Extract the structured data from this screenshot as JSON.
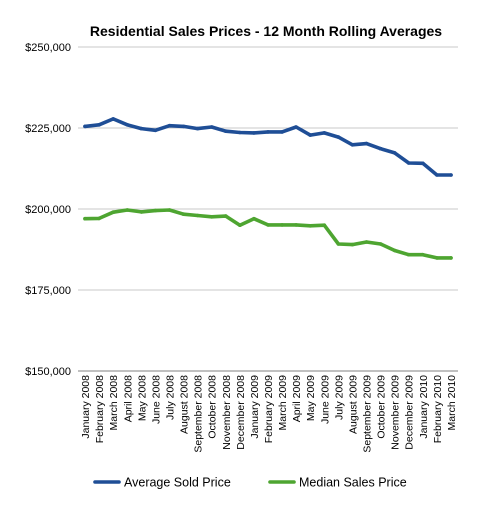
{
  "chart_data": {
    "type": "line",
    "title": "Residential Sales Prices - 12 Month Rolling Averages",
    "xlabel": "",
    "ylabel": "",
    "ylim": [
      150000,
      250000
    ],
    "y_ticks": [
      "$150,000",
      "$175,000",
      "$200,000",
      "$225,000",
      "$250,000"
    ],
    "y_tick_values": [
      150000,
      175000,
      200000,
      225000,
      250000
    ],
    "grid": true,
    "legend_position": "bottom",
    "categories": [
      "January 2008",
      "February 2008",
      "March 2008",
      "April 2008",
      "May 2008",
      "June 2008",
      "July 2008",
      "August 2008",
      "September 2008",
      "October 2008",
      "November 2008",
      "December 2008",
      "January 2009",
      "February 2009",
      "March 2009",
      "April 2009",
      "May 2009",
      "June 2009",
      "July 2009",
      "August 2009",
      "September 2009",
      "October 2009",
      "November 2009",
      "December 2009",
      "January 2010",
      "February 2010",
      "March 2010"
    ],
    "series": [
      {
        "name": "Average Sold Price",
        "color": "#1f4e96",
        "values": [
          225500,
          226000,
          227800,
          226000,
          224800,
          224300,
          225700,
          225500,
          224800,
          225300,
          224000,
          223600,
          223500,
          223800,
          223800,
          225300,
          222800,
          223500,
          222200,
          219800,
          220200,
          218600,
          217300,
          214200,
          214100,
          210500,
          210500
        ]
      },
      {
        "name": "Median Sales Price",
        "color": "#4ea531",
        "values": [
          197000,
          197100,
          199000,
          199700,
          199100,
          199500,
          199700,
          198400,
          198000,
          197600,
          197800,
          195000,
          197000,
          195100,
          195100,
          195100,
          194800,
          195000,
          189200,
          189000,
          189800,
          189200,
          187200,
          185900,
          185900,
          184900,
          184900
        ]
      }
    ]
  }
}
